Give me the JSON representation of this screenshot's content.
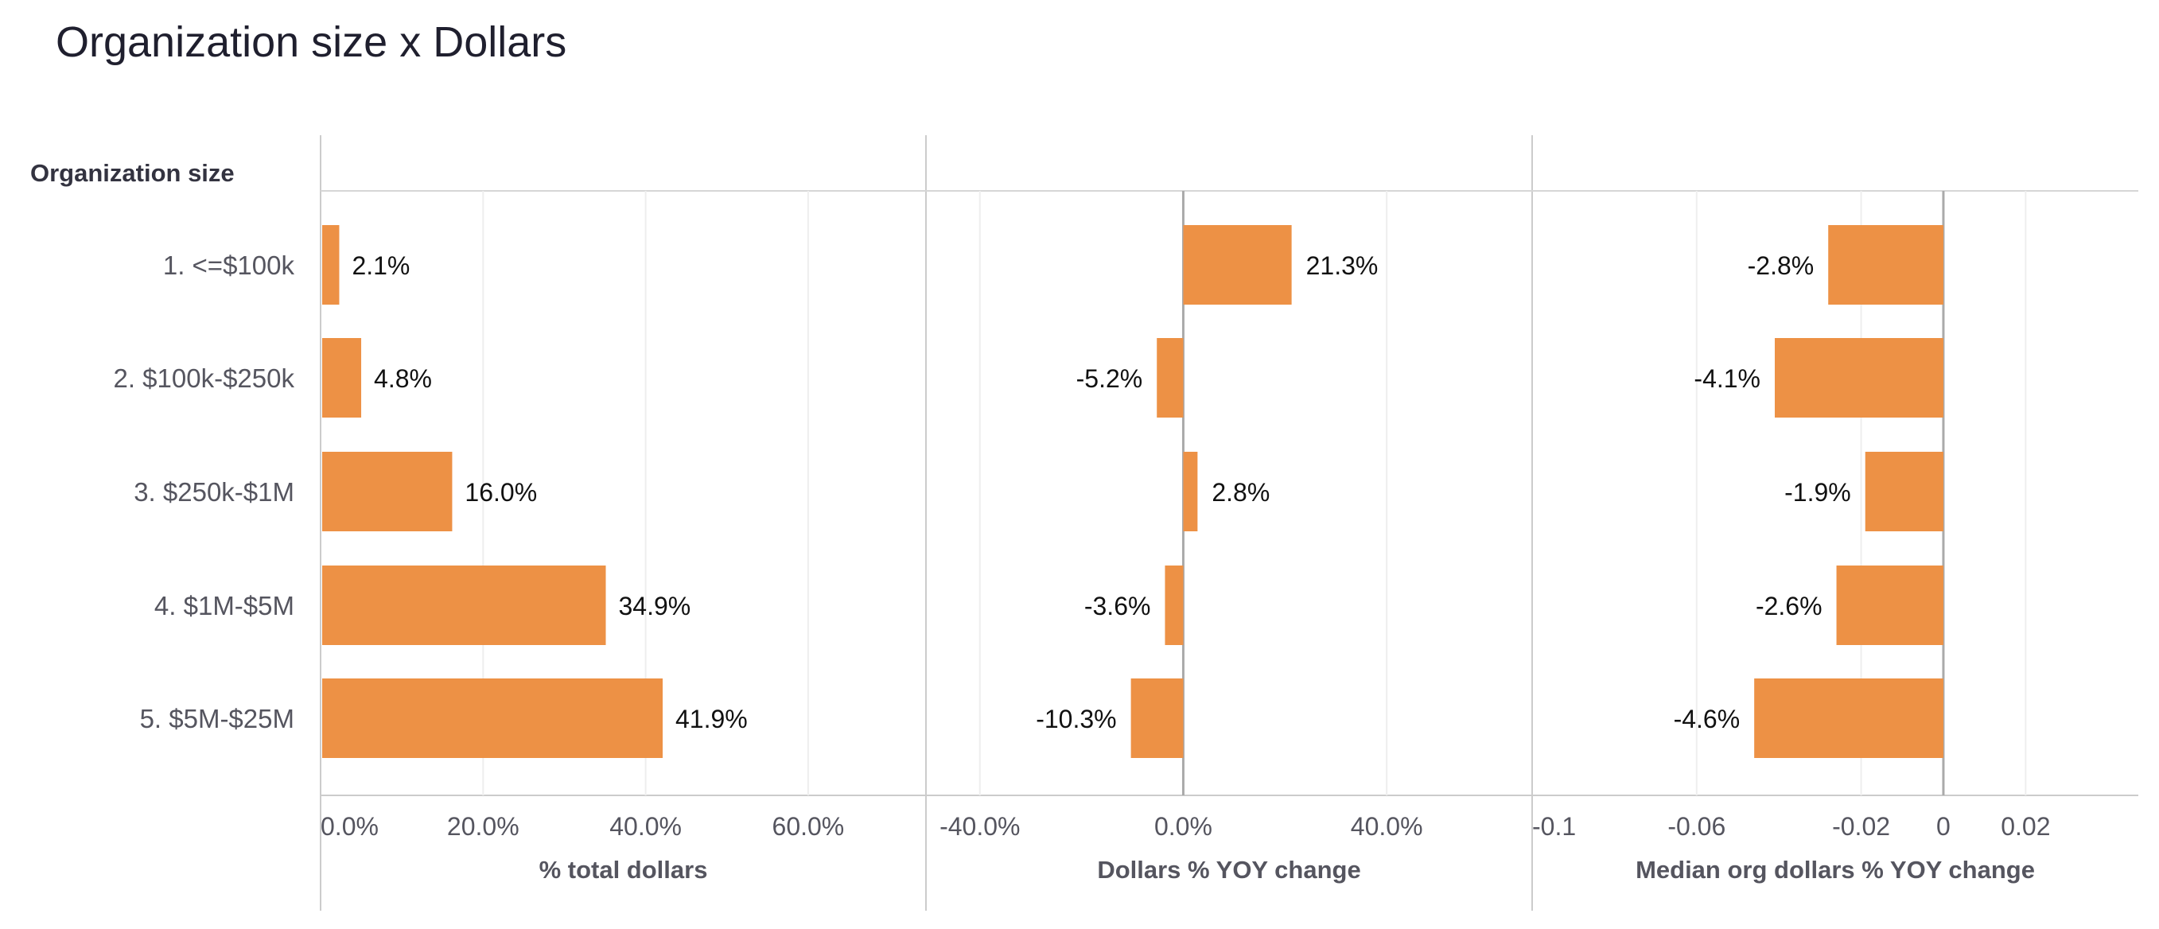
{
  "chart_data": {
    "type": "bar",
    "title": "Organization size x Dollars",
    "row_header": "Organization size",
    "categories": [
      "1. <=$100k",
      "2. $100k-$250k",
      "3. $250k-$1M",
      "4. $1M-$5M",
      "5. $5M-$25M"
    ],
    "bar_color": "#ED9145",
    "grid": true,
    "panels": [
      {
        "xlabel": "% total dollars",
        "values": [
          2.1,
          4.8,
          16.0,
          34.9,
          41.9
        ],
        "labels": [
          "2.1%",
          "4.8%",
          "16.0%",
          "34.9%",
          "41.9%"
        ],
        "xlim": [
          0,
          74.5
        ],
        "ticks": [
          0,
          20,
          40,
          60
        ],
        "tick_labels": [
          "0.0%",
          "20.0%",
          "40.0%",
          "60.0%"
        ],
        "zero_line": false
      },
      {
        "xlabel": "Dollars % YOY change",
        "values": [
          21.3,
          -5.2,
          2.8,
          -3.6,
          -10.3
        ],
        "labels": [
          "21.3%",
          "-5.2%",
          "2.8%",
          "-3.6%",
          "-10.3%"
        ],
        "xlim": [
          -50.6,
          68.6
        ],
        "ticks": [
          -40,
          0,
          40
        ],
        "tick_labels": [
          "-40.0%",
          "0.0%",
          "40.0%"
        ],
        "zero_line": true
      },
      {
        "xlabel": "Median org dollars % YOY change",
        "values": [
          -0.028,
          -0.041,
          -0.019,
          -0.026,
          -0.046
        ],
        "labels": [
          "-2.8%",
          "-4.1%",
          "-1.9%",
          "-2.6%",
          "-4.6%"
        ],
        "xlim": [
          -0.1,
          0.0474
        ],
        "ticks": [
          -0.1,
          -0.06,
          -0.02,
          0,
          0.02
        ],
        "tick_labels": [
          "-0.1",
          "-0.06",
          "-0.02",
          "0",
          "0.02"
        ],
        "zero_line": true
      }
    ]
  }
}
